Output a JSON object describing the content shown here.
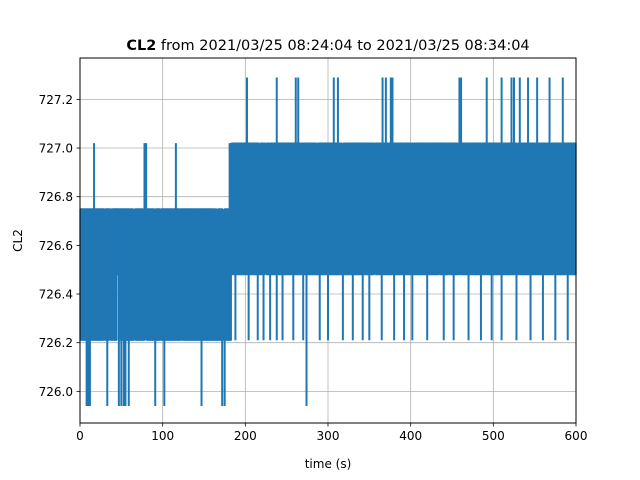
{
  "chart_data": {
    "type": "line",
    "title": {
      "bold": "CL2",
      "rest": " from 2021/03/25 08:24:04 to 2021/03/25 08:34:04"
    },
    "xlabel": "time (s)",
    "ylabel": "CL2",
    "xlim": [
      0,
      600
    ],
    "ylim": [
      725.87,
      727.37
    ],
    "xticks": [
      0,
      100,
      200,
      300,
      400,
      500,
      600
    ],
    "yticks": [
      726.0,
      726.2,
      726.4,
      726.6,
      726.8,
      727.0,
      727.2
    ],
    "grid": true,
    "series": [
      {
        "color": "#1f77b4",
        "levels": [
          725.94,
          726.21,
          726.48,
          726.75,
          727.02,
          727.29
        ],
        "segments": [
          {
            "x": [
              0,
              44
            ],
            "low": 726.21,
            "high": 726.75
          },
          {
            "x": [
              44,
              46
            ],
            "low": 726.48,
            "high": 726.75
          },
          {
            "x": [
              46,
              183
            ],
            "low": 726.21,
            "high": 726.75
          },
          {
            "x": [
              183,
              600
            ],
            "low": 726.48,
            "high": 727.02
          }
        ],
        "spikes_high": [
          [
            17,
            727.02
          ],
          [
            78,
            727.02
          ],
          [
            80,
            727.02
          ],
          [
            116,
            727.02
          ],
          [
            181,
            727.02
          ],
          [
            183,
            727.02
          ],
          [
            202,
            727.29
          ],
          [
            238,
            727.29
          ],
          [
            261,
            727.29
          ],
          [
            264,
            727.29
          ],
          [
            307,
            727.29
          ],
          [
            312,
            727.29
          ],
          [
            366,
            727.29
          ],
          [
            370,
            727.29
          ],
          [
            376,
            727.29
          ],
          [
            378,
            727.29
          ],
          [
            459,
            727.29
          ],
          [
            461,
            727.29
          ],
          [
            492,
            727.29
          ],
          [
            510,
            727.29
          ],
          [
            522,
            727.29
          ],
          [
            525,
            727.29
          ],
          [
            532,
            727.29
          ],
          [
            542,
            727.29
          ],
          [
            553,
            727.29
          ],
          [
            568,
            727.29
          ],
          [
            584,
            727.29
          ]
        ],
        "spikes_low": [
          [
            8,
            725.94
          ],
          [
            10,
            725.94
          ],
          [
            12,
            725.94
          ],
          [
            33,
            725.94
          ],
          [
            47,
            725.94
          ],
          [
            50,
            725.94
          ],
          [
            53,
            725.94
          ],
          [
            55,
            725.94
          ],
          [
            59,
            725.94
          ],
          [
            91,
            725.94
          ],
          [
            102,
            725.94
          ],
          [
            147,
            725.94
          ],
          [
            172,
            725.94
          ],
          [
            175,
            725.94
          ],
          [
            274,
            725.94
          ]
        ],
        "drops_to_mid": [
          [
            188,
            726.21
          ],
          [
            204,
            726.21
          ],
          [
            215,
            726.21
          ],
          [
            222,
            726.21
          ],
          [
            230,
            726.21
          ],
          [
            238,
            726.21
          ],
          [
            245,
            726.21
          ],
          [
            258,
            726.21
          ],
          [
            270,
            726.21
          ],
          [
            290,
            726.21
          ],
          [
            300,
            726.21
          ],
          [
            318,
            726.21
          ],
          [
            330,
            726.21
          ],
          [
            342,
            726.21
          ],
          [
            350,
            726.21
          ],
          [
            365,
            726.21
          ],
          [
            380,
            726.21
          ],
          [
            392,
            726.21
          ],
          [
            402,
            726.21
          ],
          [
            420,
            726.21
          ],
          [
            440,
            726.21
          ],
          [
            452,
            726.21
          ],
          [
            470,
            726.21
          ],
          [
            485,
            726.21
          ],
          [
            498,
            726.21
          ],
          [
            510,
            726.21
          ],
          [
            528,
            726.21
          ],
          [
            545,
            726.21
          ],
          [
            560,
            726.21
          ],
          [
            575,
            726.21
          ],
          [
            590,
            726.21
          ]
        ]
      }
    ]
  }
}
